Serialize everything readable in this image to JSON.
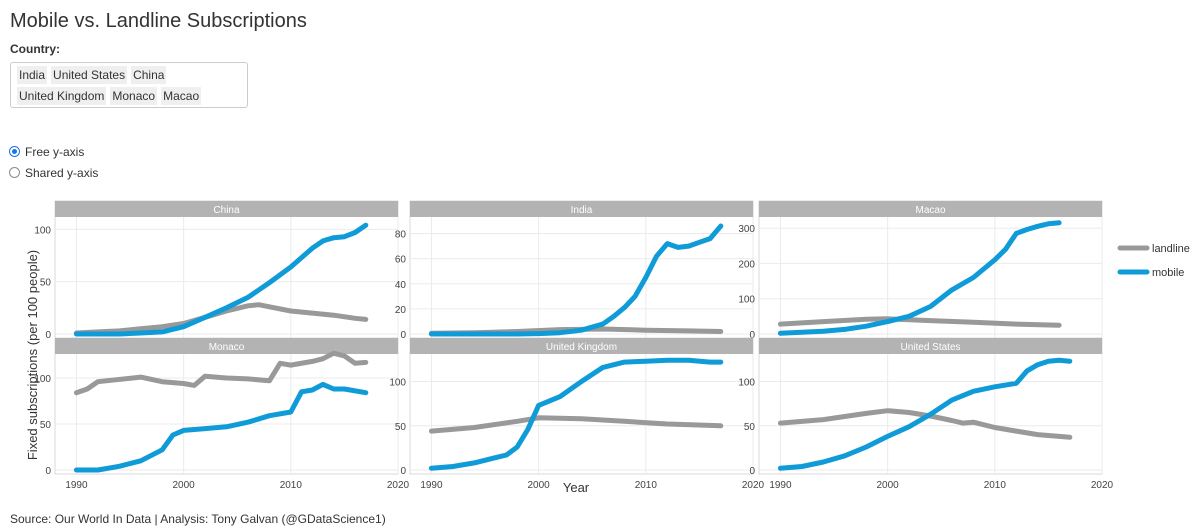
{
  "title": "Mobile vs. Landline Subscriptions",
  "filter": {
    "label": "Country:",
    "selected": [
      "India",
      "United States",
      "China",
      "United Kingdom",
      "Monaco",
      "Macao"
    ]
  },
  "axis_mode": {
    "options": [
      {
        "label": "Free y-axis",
        "checked": true
      },
      {
        "label": "Shared y-axis",
        "checked": false
      }
    ]
  },
  "source": "Source: Our World In Data | Analysis: Tony Galvan (@GDataScience1)",
  "colors": {
    "landline": "#999999",
    "mobile": "#0f9bd7",
    "strip": "#b3b3b3"
  },
  "chart_data": {
    "type": "line",
    "xlabel": "Year",
    "ylabel": "Fixed subscriptions (per 100 people)",
    "xlim": [
      1988,
      2020
    ],
    "x_ticks": [
      1990,
      2000,
      2010,
      2020
    ],
    "legend": {
      "placement": "right",
      "entries": [
        "landline",
        "mobile"
      ]
    },
    "facets": [
      {
        "name": "China",
        "ylim": [
          0,
          108
        ],
        "yticks": [
          0,
          50,
          100
        ],
        "series": [
          {
            "name": "landline",
            "x": [
              1990,
              1992,
              1994,
              1996,
              1998,
              2000,
              2002,
              2004,
              2006,
              2007,
              2008,
              2010,
              2012,
              2014,
              2016,
              2017
            ],
            "y": [
              1,
              2,
              3,
              5,
              7,
              10,
              16,
              22,
              27,
              28,
              26,
              22,
              20,
              18,
              15,
              14
            ]
          },
          {
            "name": "mobile",
            "x": [
              1990,
              1992,
              1994,
              1996,
              1998,
              2000,
              2002,
              2004,
              2006,
              2008,
              2010,
              2012,
              2013,
              2014,
              2015,
              2016,
              2017
            ],
            "y": [
              0,
              0,
              0,
              1,
              2,
              7,
              16,
              25,
              35,
              49,
              64,
              82,
              89,
              92,
              93,
              97,
              104
            ]
          }
        ]
      },
      {
        "name": "India",
        "ylim": [
          0,
          90
        ],
        "yticks": [
          0,
          20,
          40,
          60,
          80
        ],
        "series": [
          {
            "name": "landline",
            "x": [
              1990,
              1994,
              1998,
              2002,
              2006,
              2010,
              2014,
              2017
            ],
            "y": [
              0.6,
              1,
              2,
              3.5,
              4,
              3,
              2.5,
              2
            ]
          },
          {
            "name": "mobile",
            "x": [
              1990,
              1998,
              2000,
              2002,
              2004,
              2006,
              2007,
              2008,
              2009,
              2010,
              2011,
              2012,
              2013,
              2014,
              2015,
              2016,
              2017
            ],
            "y": [
              0,
              0,
              0.3,
              1,
              3,
              8,
              14,
              21,
              30,
              45,
              62,
              72,
              69,
              70,
              73,
              76,
              86
            ]
          }
        ]
      },
      {
        "name": "Macao",
        "ylim": [
          0,
          320
        ],
        "yticks": [
          0,
          100,
          200,
          300
        ],
        "series": [
          {
            "name": "landline",
            "x": [
              1990,
              1994,
              1998,
              2000,
              2004,
              2008,
              2012,
              2016
            ],
            "y": [
              28,
              35,
              42,
              43,
              38,
              33,
              28,
              25
            ]
          },
          {
            "name": "mobile",
            "x": [
              1990,
              1994,
              1996,
              1998,
              2000,
              2002,
              2004,
              2006,
              2008,
              2010,
              2011,
              2012,
              2013,
              2014,
              2015,
              2016
            ],
            "y": [
              2,
              8,
              13,
              22,
              35,
              50,
              78,
              125,
              160,
              210,
              240,
              285,
              296,
              305,
              312,
              315
            ]
          }
        ]
      },
      {
        "name": "Monaco",
        "ylim": [
          0,
          125
        ],
        "yticks": [
          0,
          50,
          100
        ],
        "series": [
          {
            "name": "landline",
            "x": [
              1990,
              1991,
              1992,
              1996,
              1998,
              2000,
              2001,
              2002,
              2004,
              2006,
              2008,
              2009,
              2010,
              2012,
              2013,
              2014,
              2015,
              2016,
              2017
            ],
            "y": [
              84,
              88,
              96,
              101,
              96,
              94,
              92,
              102,
              100,
              99,
              97,
              116,
              114,
              118,
              121,
              127,
              124,
              116,
              117
            ]
          },
          {
            "name": "mobile",
            "x": [
              1990,
              1992,
              1994,
              1996,
              1997,
              1998,
              1999,
              2000,
              2002,
              2004,
              2006,
              2008,
              2010,
              2011,
              2012,
              2013,
              2014,
              2015,
              2017
            ],
            "y": [
              0,
              0,
              4,
              10,
              16,
              22,
              38,
              43,
              45,
              47,
              52,
              59,
              63,
              85,
              87,
              93,
              88,
              88,
              84
            ]
          }
        ]
      },
      {
        "name": "United Kingdom",
        "ylim": [
          0,
          130
        ],
        "yticks": [
          0,
          50,
          100
        ],
        "series": [
          {
            "name": "landline",
            "x": [
              1990,
              1994,
              1998,
              2000,
              2004,
              2008,
              2012,
              2017
            ],
            "y": [
              44,
              48,
              55,
              59,
              58,
              55,
              52,
              50
            ]
          },
          {
            "name": "mobile",
            "x": [
              1990,
              1992,
              1994,
              1996,
              1997,
              1998,
              1999,
              2000,
              2002,
              2004,
              2006,
              2008,
              2010,
              2012,
              2014,
              2016,
              2017
            ],
            "y": [
              2,
              4,
              8,
              14,
              17,
              26,
              46,
              73,
              83,
              100,
              116,
              122,
              123,
              124,
              124,
              122,
              122
            ]
          }
        ]
      },
      {
        "name": "United States",
        "ylim": [
          0,
          130
        ],
        "yticks": [
          0,
          50,
          100
        ],
        "series": [
          {
            "name": "landline",
            "x": [
              1990,
              1994,
              1998,
              2000,
              2002,
              2004,
              2006,
              2007,
              2008,
              2010,
              2012,
              2014,
              2016,
              2017
            ],
            "y": [
              53,
              57,
              64,
              67,
              65,
              61,
              56,
              53,
              54,
              48,
              44,
              40,
              38,
              37
            ]
          },
          {
            "name": "mobile",
            "x": [
              1990,
              1992,
              1994,
              1996,
              1998,
              2000,
              2002,
              2004,
              2006,
              2008,
              2010,
              2012,
              2013,
              2014,
              2015,
              2016,
              2017
            ],
            "y": [
              2,
              4,
              9,
              16,
              26,
              38,
              49,
              63,
              79,
              89,
              94,
              98,
              112,
              119,
              123,
              124,
              123
            ]
          }
        ]
      }
    ]
  }
}
